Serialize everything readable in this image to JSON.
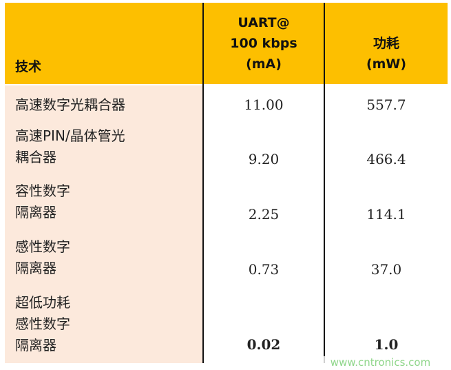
{
  "table": {
    "headers": [
      "技术",
      "UART@\n100 kbps\n(mA)",
      "功耗\n(mW)"
    ],
    "header_lines": {
      "col1": [
        "UART@",
        "100 kbps",
        "(mA)"
      ],
      "col2": [
        "功耗",
        "(mW)"
      ]
    },
    "rows": [
      {
        "tech": [
          "高速数字光耦合器"
        ],
        "current": "11.00",
        "power": "557.7"
      },
      {
        "tech": [
          "高速PIN/晶体管光",
          "耦合器"
        ],
        "current": "9.20",
        "power": "466.4"
      },
      {
        "tech": [
          "容性数字",
          "隔离器"
        ],
        "current": "2.25",
        "power": "114.1"
      },
      {
        "tech": [
          "感性数字",
          "隔离器"
        ],
        "current": "0.73",
        "power": "37.0"
      },
      {
        "tech": [
          "超低功耗",
          "感性数字",
          "隔离器"
        ],
        "current": "0.02",
        "power": "1.0"
      }
    ],
    "colors": {
      "header": "#FDBF00",
      "first_column": "#FCE9DC"
    }
  },
  "watermark": "www.cntronics.com"
}
